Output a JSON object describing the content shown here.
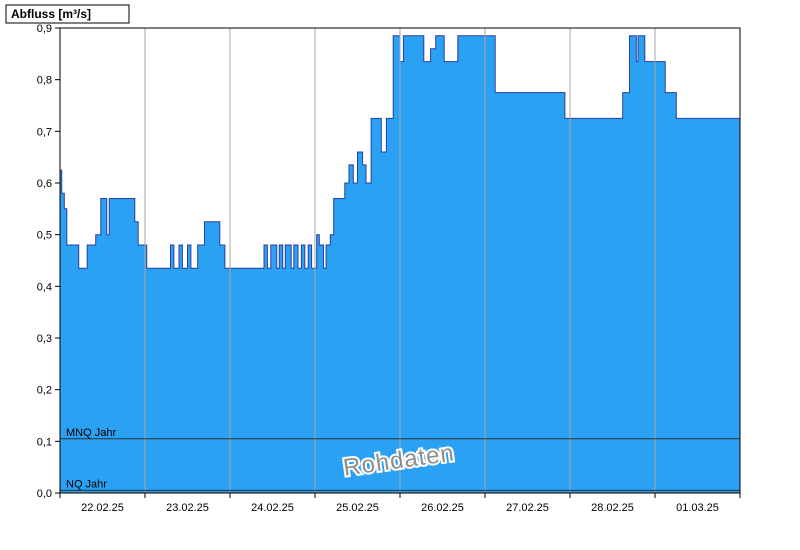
{
  "header": {
    "title": "Abfluss [m³/s]"
  },
  "watermark": "Rohdaten",
  "chart_data": {
    "type": "area",
    "step": true,
    "title": "Abfluss [m³/s]",
    "ylabel": "Abfluss [m³/s]",
    "xlabel": "",
    "ylim": [
      0,
      0.9
    ],
    "ytick_step": 0.1,
    "ytick_labels": [
      "0,0",
      "0,1",
      "0,2",
      "0,3",
      "0,4",
      "0,5",
      "0,6",
      "0,7",
      "0,8",
      "0,9"
    ],
    "x_categories": [
      "22.02.25",
      "23.02.25",
      "24.02.25",
      "25.02.25",
      "26.02.25",
      "27.02.25",
      "28.02.25",
      "01.03.25"
    ],
    "x_days": 8,
    "grid": "vertical-daily",
    "legend": "none",
    "series": [
      {
        "name": "Abfluss Rohdaten",
        "unit": "m³/s",
        "x_unit": "days since 22.02.25 00:00",
        "points": [
          [
            0.0,
            0.625
          ],
          [
            0.02,
            0.58
          ],
          [
            0.05,
            0.55
          ],
          [
            0.08,
            0.48
          ],
          [
            0.22,
            0.435
          ],
          [
            0.32,
            0.48
          ],
          [
            0.42,
            0.5
          ],
          [
            0.48,
            0.57
          ],
          [
            0.55,
            0.5
          ],
          [
            0.58,
            0.57
          ],
          [
            0.88,
            0.525
          ],
          [
            0.92,
            0.48
          ],
          [
            1.02,
            0.435
          ],
          [
            1.3,
            0.48
          ],
          [
            1.34,
            0.435
          ],
          [
            1.4,
            0.48
          ],
          [
            1.44,
            0.435
          ],
          [
            1.5,
            0.48
          ],
          [
            1.54,
            0.435
          ],
          [
            1.62,
            0.48
          ],
          [
            1.7,
            0.525
          ],
          [
            1.88,
            0.48
          ],
          [
            1.94,
            0.435
          ],
          [
            2.4,
            0.48
          ],
          [
            2.44,
            0.435
          ],
          [
            2.48,
            0.48
          ],
          [
            2.55,
            0.435
          ],
          [
            2.58,
            0.48
          ],
          [
            2.62,
            0.435
          ],
          [
            2.65,
            0.48
          ],
          [
            2.72,
            0.435
          ],
          [
            2.75,
            0.48
          ],
          [
            2.8,
            0.435
          ],
          [
            2.84,
            0.48
          ],
          [
            2.88,
            0.435
          ],
          [
            2.92,
            0.48
          ],
          [
            2.96,
            0.435
          ],
          [
            3.02,
            0.5
          ],
          [
            3.05,
            0.48
          ],
          [
            3.1,
            0.435
          ],
          [
            3.13,
            0.48
          ],
          [
            3.18,
            0.5
          ],
          [
            3.22,
            0.57
          ],
          [
            3.35,
            0.6
          ],
          [
            3.4,
            0.635
          ],
          [
            3.45,
            0.6
          ],
          [
            3.5,
            0.66
          ],
          [
            3.56,
            0.635
          ],
          [
            3.6,
            0.6
          ],
          [
            3.66,
            0.725
          ],
          [
            3.78,
            0.66
          ],
          [
            3.84,
            0.725
          ],
          [
            3.92,
            0.885
          ],
          [
            4.0,
            0.835
          ],
          [
            4.04,
            0.885
          ],
          [
            4.28,
            0.835
          ],
          [
            4.36,
            0.86
          ],
          [
            4.42,
            0.885
          ],
          [
            4.52,
            0.835
          ],
          [
            4.68,
            0.885
          ],
          [
            5.12,
            0.775
          ],
          [
            5.94,
            0.725
          ],
          [
            6.62,
            0.775
          ],
          [
            6.7,
            0.885
          ],
          [
            6.78,
            0.835
          ],
          [
            6.8,
            0.885
          ],
          [
            6.88,
            0.835
          ],
          [
            7.12,
            0.775
          ],
          [
            7.25,
            0.725
          ]
        ]
      }
    ],
    "ref_lines": [
      {
        "label": "MNQ Jahr",
        "value": 0.105
      },
      {
        "label": "NQ Jahr",
        "value": 0.005
      }
    ],
    "colors": {
      "fill": "#2aa1f2",
      "stroke": "#2b3f9e",
      "grid": "#a6a6a6",
      "ref_line": "#303030",
      "axis": "#000000",
      "watermark": "#8f8f8f",
      "plot_bg": "#ffffff"
    }
  }
}
